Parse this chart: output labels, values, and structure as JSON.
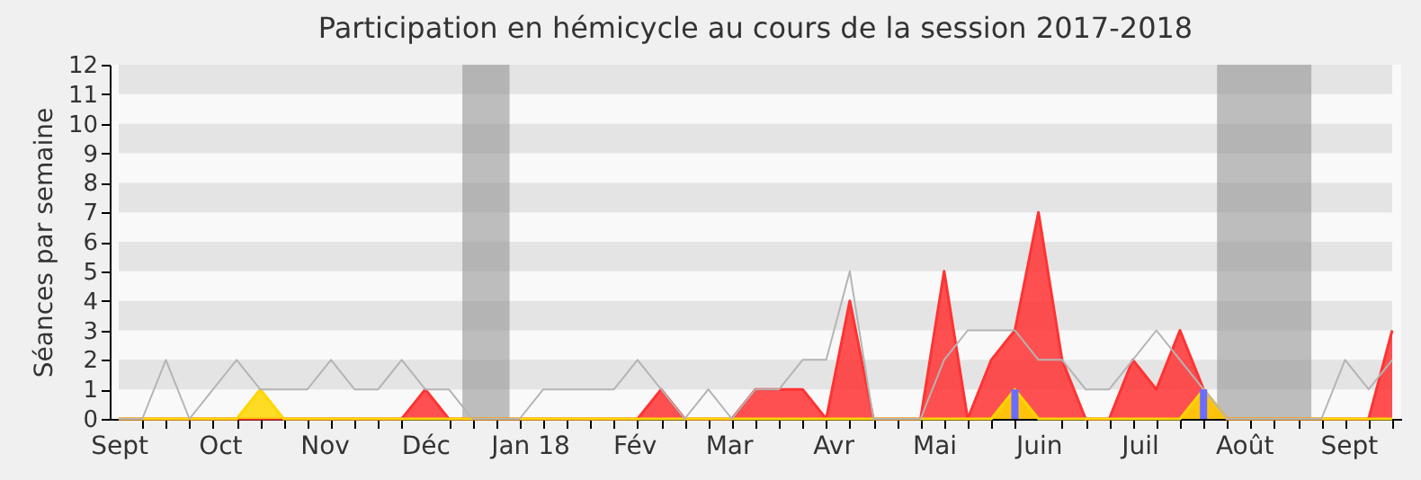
{
  "chart_data": {
    "type": "area",
    "title": "Participation en hémicycle au cours de la session 2017-2018",
    "ylabel": "Séances par semaine",
    "x": [
      "2017-09-01",
      "2017-09-08",
      "2017-09-15",
      "2017-09-22",
      "2017-09-29",
      "2017-10-06",
      "2017-10-13",
      "2017-10-20",
      "2017-10-27",
      "2017-11-03",
      "2017-11-10",
      "2017-11-17",
      "2017-11-24",
      "2017-12-01",
      "2017-12-08",
      "2017-12-15",
      "2017-12-22",
      "2017-12-29",
      "2018-01-05",
      "2018-01-12",
      "2018-01-19",
      "2018-01-26",
      "2018-02-02",
      "2018-02-09",
      "2018-02-16",
      "2018-02-23",
      "2018-03-02",
      "2018-03-09",
      "2018-03-16",
      "2018-03-23",
      "2018-03-30",
      "2018-04-06",
      "2018-04-13",
      "2018-04-20",
      "2018-04-27",
      "2018-05-04",
      "2018-05-11",
      "2018-05-18",
      "2018-05-25",
      "2018-06-01",
      "2018-06-08",
      "2018-06-15",
      "2018-06-22",
      "2018-06-29",
      "2018-07-06",
      "2018-07-13",
      "2018-07-20",
      "2018-07-27",
      "2018-08-03",
      "2018-08-10",
      "2018-08-17",
      "2018-08-24",
      "2018-08-31",
      "2018-09-07",
      "2018-09-14"
    ],
    "series": [
      {
        "type": "line",
        "color": "#b4b4b4",
        "values": [
          0,
          0,
          2,
          0,
          1,
          2,
          1,
          1,
          1,
          2,
          1,
          1,
          2,
          1,
          1,
          0,
          0,
          0,
          1,
          1,
          1,
          1,
          2,
          1,
          0,
          1,
          0,
          1,
          1,
          2,
          2,
          5,
          0,
          0,
          0,
          2,
          3,
          3,
          3,
          2,
          2,
          1,
          1,
          2,
          3,
          2,
          1,
          0,
          0,
          0,
          0,
          0,
          2,
          1,
          2
        ]
      },
      {
        "color": "#ff3333",
        "values": [
          0,
          0,
          0,
          0,
          0,
          0,
          0,
          0,
          0,
          0,
          0,
          0,
          0,
          1,
          0,
          0,
          0,
          0,
          0,
          0,
          0,
          0,
          0,
          1,
          0,
          0,
          0,
          1,
          1,
          1,
          0,
          4,
          0,
          0,
          0,
          5,
          0,
          2,
          3,
          7,
          2,
          0,
          0,
          2,
          1,
          3,
          1,
          0,
          0,
          0,
          0,
          0,
          0,
          0,
          3
        ]
      },
      {
        "color": "#ffd700",
        "values": [
          0,
          0,
          0,
          0,
          0,
          0,
          1,
          0,
          0,
          0,
          0,
          0,
          0,
          0,
          0,
          0,
          0,
          0,
          0,
          0,
          0,
          0,
          0,
          0,
          0,
          0,
          0,
          0,
          0,
          0,
          0,
          0,
          0,
          0,
          0,
          0,
          0,
          0,
          1,
          0,
          0,
          0,
          0,
          0,
          0,
          0,
          1,
          0,
          0,
          0,
          0,
          0,
          0,
          0,
          0
        ]
      },
      {
        "type": "bar",
        "color": "#6b6bff",
        "values": [
          null,
          null,
          null,
          null,
          null,
          null,
          null,
          null,
          null,
          null,
          null,
          null,
          null,
          null,
          null,
          null,
          null,
          null,
          null,
          null,
          null,
          null,
          null,
          null,
          null,
          null,
          null,
          null,
          null,
          null,
          null,
          null,
          null,
          null,
          null,
          null,
          null,
          null,
          1,
          null,
          null,
          null,
          null,
          null,
          null,
          null,
          1,
          null,
          null,
          null,
          null,
          null,
          null,
          null,
          null
        ]
      }
    ],
    "xlim": [
      "2017-09-01",
      "2018-09-14"
    ],
    "xticks": [
      {
        "value": "2017-09-01",
        "label": "Sept"
      },
      {
        "value": "2017-10-01",
        "label": "Oct"
      },
      {
        "value": "2017-11-01",
        "label": "Nov"
      },
      {
        "value": "2017-12-01",
        "label": "Déc"
      },
      {
        "value": "2018-01-01",
        "label": "Jan 18"
      },
      {
        "value": "2018-02-01",
        "label": "Fév"
      },
      {
        "value": "2018-03-01",
        "label": "Mar"
      },
      {
        "value": "2018-04-01",
        "label": "Avr"
      },
      {
        "value": "2018-05-01",
        "label": "Mai"
      },
      {
        "value": "2018-06-01",
        "label": "Juin"
      },
      {
        "value": "2018-07-01",
        "label": "Juil"
      },
      {
        "value": "2018-08-01",
        "label": "Août"
      },
      {
        "value": "2018-09-01",
        "label": "Sept"
      },
      {
        "value": "2017-09-08",
        "label": null
      },
      {
        "value": "2017-09-15",
        "label": null
      },
      {
        "value": "2017-09-22",
        "label": null
      },
      {
        "value": "2017-09-29",
        "label": null
      },
      {
        "value": "2017-10-06",
        "label": null
      },
      {
        "value": "2017-10-13",
        "label": null
      },
      {
        "value": "2017-10-20",
        "label": null
      },
      {
        "value": "2017-10-27",
        "label": null
      },
      {
        "value": "2017-11-03",
        "label": null
      },
      {
        "value": "2017-11-10",
        "label": null
      },
      {
        "value": "2017-11-17",
        "label": null
      },
      {
        "value": "2017-11-24",
        "label": null
      },
      {
        "value": "2017-12-08",
        "label": null
      },
      {
        "value": "2017-12-15",
        "label": null
      },
      {
        "value": "2017-12-22",
        "label": null
      },
      {
        "value": "2017-12-29",
        "label": null
      },
      {
        "value": "2018-01-05",
        "label": null
      },
      {
        "value": "2018-01-12",
        "label": null
      },
      {
        "value": "2018-01-19",
        "label": null
      },
      {
        "value": "2018-01-26",
        "label": null
      },
      {
        "value": "2018-02-02",
        "label": null
      },
      {
        "value": "2018-02-09",
        "label": null
      },
      {
        "value": "2018-02-16",
        "label": null
      },
      {
        "value": "2018-02-23",
        "label": null
      },
      {
        "value": "2018-03-02",
        "label": null
      },
      {
        "value": "2018-03-09",
        "label": null
      },
      {
        "value": "2018-03-16",
        "label": null
      },
      {
        "value": "2018-03-23",
        "label": null
      },
      {
        "value": "2018-03-30",
        "label": null
      },
      {
        "value": "2018-04-06",
        "label": null
      },
      {
        "value": "2018-04-13",
        "label": null
      },
      {
        "value": "2018-04-20",
        "label": null
      },
      {
        "value": "2018-04-27",
        "label": null
      },
      {
        "value": "2018-05-04",
        "label": null
      },
      {
        "value": "2018-05-11",
        "label": null
      },
      {
        "value": "2018-05-18",
        "label": null
      },
      {
        "value": "2018-05-25",
        "label": null
      },
      {
        "value": "2018-06-08",
        "label": null
      },
      {
        "value": "2018-06-15",
        "label": null
      },
      {
        "value": "2018-06-22",
        "label": null
      },
      {
        "value": "2018-06-29",
        "label": null
      },
      {
        "value": "2018-07-06",
        "label": null
      },
      {
        "value": "2018-07-13",
        "label": null
      },
      {
        "value": "2018-07-20",
        "label": null
      },
      {
        "value": "2018-07-27",
        "label": null
      },
      {
        "value": "2018-08-03",
        "label": null
      },
      {
        "value": "2018-08-10",
        "label": null
      },
      {
        "value": "2018-08-17",
        "label": null
      },
      {
        "value": "2018-08-24",
        "label": null
      },
      {
        "value": "2018-08-31",
        "label": null
      },
      {
        "value": "2018-09-07",
        "label": null
      },
      {
        "value": "2018-09-14",
        "label": null
      }
    ],
    "ylim": [
      0,
      12
    ],
    "yticks": [
      0,
      1,
      2,
      3,
      4,
      5,
      6,
      7,
      8,
      9,
      10,
      11,
      12
    ],
    "bands": [
      {
        "axis": "x",
        "from": "2017-12-12",
        "to": "2017-12-26",
        "color": "#8c8c8c"
      },
      {
        "axis": "x",
        "from": "2018-07-24",
        "to": "2018-08-21",
        "color": "#8c8c8c"
      }
    ]
  }
}
